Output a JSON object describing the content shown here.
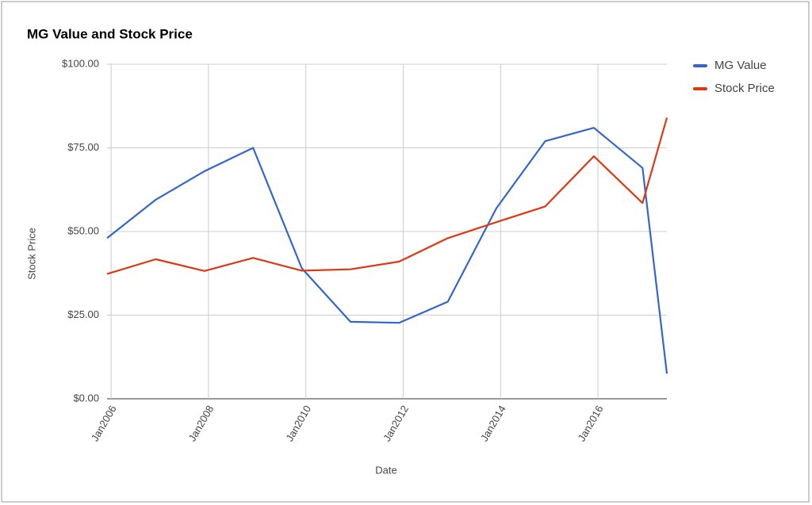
{
  "chart_data": {
    "type": "line",
    "title": "MG Value and Stock Price",
    "x_label": "Date",
    "y_label": "Stock Price",
    "x": [
      "2005-12",
      "2006-12",
      "2007-12",
      "2008-12",
      "2009-12",
      "2010-12",
      "2011-12",
      "2012-12",
      "2013-12",
      "2014-12",
      "2015-12",
      "2016-12",
      "2017-06"
    ],
    "series": [
      {
        "name": "MG Value",
        "color": "#3366cc",
        "values": [
          48,
          59.5,
          68,
          75,
          39,
          23,
          22.7,
          29,
          57,
          77,
          81,
          69,
          7.5
        ]
      },
      {
        "name": "Stock Price",
        "color": "#dc3912",
        "values": [
          37.3,
          41.7,
          38.2,
          42.1,
          38.3,
          38.7,
          41,
          48,
          52.8,
          57.5,
          72.5,
          58.5,
          84
        ]
      }
    ],
    "xlim": [
      "2005-12",
      "2017-06"
    ],
    "xticks": [
      {
        "value": "2006-01",
        "label": "Jan2006"
      },
      {
        "value": "2008-01",
        "label": "Jan2008"
      },
      {
        "value": "2010-01",
        "label": "Jan2010"
      },
      {
        "value": "2012-01",
        "label": "Jan2012"
      },
      {
        "value": "2014-01",
        "label": "Jan2014"
      },
      {
        "value": "2016-01",
        "label": "Jan2016"
      }
    ],
    "ylim": [
      0,
      100
    ],
    "yticks": [
      {
        "value": 0,
        "label": "$0.00"
      },
      {
        "value": 25,
        "label": "$25.00"
      },
      {
        "value": 50,
        "label": "$50.00"
      },
      {
        "value": 75,
        "label": "$75.00"
      },
      {
        "value": 100,
        "label": "$100.00"
      }
    ],
    "grid": true,
    "legend": "right"
  }
}
